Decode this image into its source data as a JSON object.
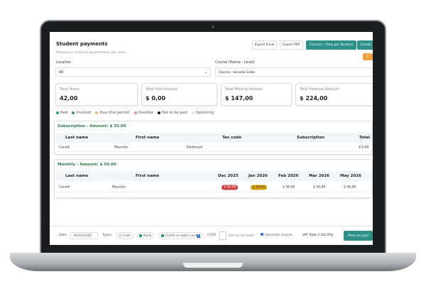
{
  "header": {
    "title": "Student payments",
    "subtitle": "Planned vs received paymements per class."
  },
  "toolbar": {
    "export_excel": "Export Excel",
    "export_pdf": "Export PDF",
    "courses_view": "Courses - View per Student",
    "events": "Events",
    "extra": "T"
  },
  "filters": {
    "location_label": "Location",
    "location_value": "All",
    "course_label": "Course  (Name - Level)",
    "course_value": "Classica - Secondo Grado"
  },
  "cards": [
    {
      "label": "Total Hours",
      "value": "42,00"
    },
    {
      "label": "Total Paid Amount",
      "value": "$ 0,00"
    },
    {
      "label": "Total Missing Amount",
      "value": "$ 147,00"
    },
    {
      "label": "Total Forecast Amount",
      "value": "$ 224,00"
    }
  ],
  "legend": [
    {
      "label": "Paid",
      "color": "#2e9a7e"
    },
    {
      "label": "Invoiced",
      "color": "#2e8f8a"
    },
    {
      "label": "Due (this period)",
      "color": "#f0c070"
    },
    {
      "label": "Overdue",
      "color": "#e89a9a"
    },
    {
      "label": "Not to be paid",
      "color": "#111111"
    },
    {
      "label": "Upcoming",
      "color": "#e6e6e6"
    }
  ],
  "subscription": {
    "title": "Subscription - Amount: $ 35.00",
    "columns": [
      "Last name",
      "First name",
      "Tax code",
      "Subscription",
      "Total"
    ],
    "rows": [
      {
        "last": "Canelli",
        "first": "Maurizio",
        "tax": "Dedereed",
        "subscription": "",
        "total": "$ 0,00"
      }
    ]
  },
  "monthly": {
    "title": "Monthly - Amount: $ 56.00",
    "columns": [
      "Last name",
      "First name",
      "Dec 2025",
      "Jan 2026",
      "Feb 2026",
      "Mar 2026",
      "May 2026"
    ],
    "rows": [
      {
        "last": "Canelli",
        "first": "Maurizio",
        "months": [
          {
            "v": "$ 56,00",
            "status": "overdue",
            "color": "#c94040"
          },
          {
            "v": "$ 56,00",
            "status": "due",
            "color": "#d4a012"
          },
          {
            "v": "$ 56,00"
          },
          {
            "v": "$ 56,00"
          },
          {
            "v": "$ 56,00"
          }
        ]
      }
    ]
  },
  "footer": {
    "date_label": "Date:",
    "date_value": "16/01/2026",
    "types_label": "Types:",
    "cash": "Cash",
    "bank": "Bank",
    "card": "Credit or debit card",
    "card_badge": "1",
    "catd": "CATD",
    "not_to_be_paid": "Not to be paid",
    "generate_invoice": "Generate invoice",
    "vat": "VAT Rate 1 (22,0%)",
    "mark_paid": "Mark as paid"
  }
}
